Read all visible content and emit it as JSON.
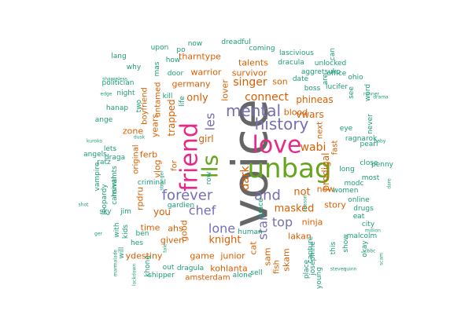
{
  "chart_data": {
    "type": "wordcloud",
    "title": "",
    "colors": {
      "gray": "#666666",
      "green": "#66a61e",
      "magenta": "#e7298a",
      "purple": "#7570b3",
      "orange": "#d95f02",
      "teal": "#1b9e77"
    },
    "words": [
      {
        "text": "voice",
        "weight": 62,
        "color": "gray",
        "rotate": -90
      },
      {
        "text": "unbag",
        "weight": 34,
        "color": "green",
        "rotate": 0
      },
      {
        "text": "friend",
        "weight": 30,
        "color": "magenta",
        "rotate": -90
      },
      {
        "text": "love",
        "weight": 30,
        "color": "magenta",
        "rotate": 0
      },
      {
        "text": "lls",
        "weight": 28,
        "color": "green",
        "rotate": -90
      },
      {
        "text": "history",
        "weight": 20,
        "color": "purple",
        "rotate": 0
      },
      {
        "text": "mental",
        "weight": 20,
        "color": "purple",
        "rotate": 0
      },
      {
        "text": "forever",
        "weight": 18,
        "color": "purple",
        "rotate": 0
      },
      {
        "text": "and",
        "weight": 18,
        "color": "purple",
        "rotate": 0
      },
      {
        "text": "chef",
        "weight": 16,
        "color": "purple",
        "rotate": 0
      },
      {
        "text": "lone",
        "weight": 16,
        "color": "purple",
        "rotate": 0
      },
      {
        "text": "top",
        "weight": 16,
        "color": "purple",
        "rotate": 0
      },
      {
        "text": "les",
        "weight": 16,
        "color": "purple",
        "rotate": -90
      },
      {
        "text": "star",
        "weight": 16,
        "color": "purple",
        "rotate": -90
      },
      {
        "text": "connect",
        "weight": 14,
        "color": "orange",
        "rotate": 0
      },
      {
        "text": "singer",
        "weight": 14,
        "color": "orange",
        "rotate": 0
      },
      {
        "text": "dark",
        "weight": 14,
        "color": "orange",
        "rotate": -90
      },
      {
        "text": "wabi",
        "weight": 14,
        "color": "orange",
        "rotate": 0
      },
      {
        "text": "masked",
        "weight": 13,
        "color": "orange",
        "rotate": 0
      },
      {
        "text": "not",
        "weight": 13,
        "color": "orange",
        "rotate": 0
      },
      {
        "text": "only",
        "weight": 13,
        "color": "orange",
        "rotate": 0
      },
      {
        "text": "knight",
        "weight": 13,
        "color": "orange",
        "rotate": 0
      },
      {
        "text": "vwars",
        "weight": 12,
        "color": "orange",
        "rotate": 0
      },
      {
        "text": "phineas",
        "weight": 12,
        "color": "orange",
        "rotate": 0
      },
      {
        "text": "prodigal",
        "weight": 12,
        "color": "orange",
        "rotate": -90
      },
      {
        "text": "trapped",
        "weight": 12,
        "color": "orange",
        "rotate": -90
      },
      {
        "text": "girl",
        "weight": 12,
        "color": "orange",
        "rotate": 0
      },
      {
        "text": "you",
        "weight": 12,
        "color": "orange",
        "rotate": 0
      },
      {
        "text": "now",
        "weight": 11,
        "color": "orange",
        "rotate": 0
      },
      {
        "text": "story",
        "weight": 11,
        "color": "orange",
        "rotate": 0
      },
      {
        "text": "lakan",
        "weight": 11,
        "color": "orange",
        "rotate": 0
      },
      {
        "text": "blood",
        "weight": 11,
        "color": "orange",
        "rotate": 0
      },
      {
        "text": "warrior",
        "weight": 11,
        "color": "orange",
        "rotate": 0
      },
      {
        "text": "germany",
        "weight": 11,
        "color": "orange",
        "rotate": 0
      },
      {
        "text": "tharntype",
        "weight": 11,
        "color": "orange",
        "rotate": 0
      },
      {
        "text": "talents",
        "weight": 11,
        "color": "orange",
        "rotate": 0
      },
      {
        "text": "son",
        "weight": 11,
        "color": "orange",
        "rotate": 0
      },
      {
        "text": "lover",
        "weight": 11,
        "color": "orange",
        "rotate": -90
      },
      {
        "text": "survivor",
        "weight": 11,
        "color": "orange",
        "rotate": 0
      },
      {
        "text": "years",
        "weight": 11,
        "color": "orange",
        "rotate": -90
      },
      {
        "text": "zone",
        "weight": 11,
        "color": "orange",
        "rotate": 0
      },
      {
        "text": "ferb",
        "weight": 11,
        "color": "orange",
        "rotate": 0
      },
      {
        "text": "vlog",
        "weight": 11,
        "color": "orange",
        "rotate": -90
      },
      {
        "text": "rpdru",
        "weight": 11,
        "color": "orange",
        "rotate": -90
      },
      {
        "text": "time",
        "weight": 11,
        "color": "orange",
        "rotate": 0
      },
      {
        "text": "ahs",
        "weight": 11,
        "color": "orange",
        "rotate": 0
      },
      {
        "text": "given",
        "weight": 11,
        "color": "orange",
        "rotate": 0
      },
      {
        "text": "ydestiny",
        "weight": 11,
        "color": "orange",
        "rotate": 0
      },
      {
        "text": "game",
        "weight": 11,
        "color": "orange",
        "rotate": 0
      },
      {
        "text": "junior",
        "weight": 11,
        "color": "orange",
        "rotate": 0
      },
      {
        "text": "kohlanta",
        "weight": 11,
        "color": "orange",
        "rotate": 0
      },
      {
        "text": "good",
        "weight": 11,
        "color": "orange",
        "rotate": -90
      },
      {
        "text": "ninja",
        "weight": 11,
        "color": "orange",
        "rotate": 0
      },
      {
        "text": "cat",
        "weight": 11,
        "color": "orange",
        "rotate": -90
      },
      {
        "text": "sam",
        "weight": 11,
        "color": "orange",
        "rotate": -90
      },
      {
        "text": "skam",
        "weight": 11,
        "color": "orange",
        "rotate": -90
      },
      {
        "text": "fish",
        "weight": 10,
        "color": "orange",
        "rotate": -90
      },
      {
        "text": "for",
        "weight": 10,
        "color": "orange",
        "rotate": -90
      },
      {
        "text": "untamed",
        "weight": 10,
        "color": "orange",
        "rotate": -90
      },
      {
        "text": "boyfriend",
        "weight": 10,
        "color": "orange",
        "rotate": -90
      },
      {
        "text": "original",
        "weight": 10,
        "color": "orange",
        "rotate": -90
      },
      {
        "text": "next",
        "weight": 10,
        "color": "orange",
        "rotate": -90
      },
      {
        "text": "fast",
        "weight": 10,
        "color": "orange",
        "rotate": -90
      },
      {
        "text": "amsterdam",
        "weight": 10,
        "color": "orange",
        "rotate": 0
      },
      {
        "text": "upon",
        "weight": 9,
        "color": "teal",
        "rotate": 0
      },
      {
        "text": "po",
        "weight": 9,
        "color": "teal",
        "rotate": 0
      },
      {
        "text": "now",
        "weight": 9,
        "color": "teal",
        "rotate": 0
      },
      {
        "text": "dreadful",
        "weight": 9,
        "color": "teal",
        "rotate": 0
      },
      {
        "text": "coming",
        "weight": 9,
        "color": "teal",
        "rotate": 0
      },
      {
        "text": "lascivious",
        "weight": 9,
        "color": "teal",
        "rotate": 0
      },
      {
        "text": "mas",
        "weight": 9,
        "color": "teal",
        "rotate": -90
      },
      {
        "text": "how",
        "weight": 9,
        "color": "teal",
        "rotate": 0
      },
      {
        "text": "dracula",
        "weight": 9,
        "color": "teal",
        "rotate": 0
      },
      {
        "text": "unlocked",
        "weight": 9,
        "color": "teal",
        "rotate": 0
      },
      {
        "text": "why",
        "weight": 9,
        "color": "teal",
        "rotate": 0
      },
      {
        "text": "door",
        "weight": 9,
        "color": "teal",
        "rotate": 0
      },
      {
        "text": "aggretsuko",
        "weight": 9,
        "color": "teal",
        "rotate": 0
      },
      {
        "text": "office",
        "weight": 9,
        "color": "teal",
        "rotate": 0
      },
      {
        "text": "politician",
        "weight": 9,
        "color": "teal",
        "rotate": 0
      },
      {
        "text": "date",
        "weight": 9,
        "color": "teal",
        "rotate": 0
      },
      {
        "text": "night",
        "weight": 9,
        "color": "teal",
        "rotate": 0
      },
      {
        "text": "kill",
        "weight": 9,
        "color": "teal",
        "rotate": 0
      },
      {
        "text": "boss",
        "weight": 9,
        "color": "teal",
        "rotate": 0
      },
      {
        "text": "lucifer",
        "weight": 9,
        "color": "teal",
        "rotate": 0
      },
      {
        "text": "see",
        "weight": 9,
        "color": "teal",
        "rotate": -90
      },
      {
        "text": "life",
        "weight": 9,
        "color": "teal",
        "rotate": -90
      },
      {
        "text": "word",
        "weight": 9,
        "color": "teal",
        "rotate": -90
      },
      {
        "text": "two",
        "weight": 9,
        "color": "teal",
        "rotate": -90
      },
      {
        "text": "hanap",
        "weight": 9,
        "color": "teal",
        "rotate": 0
      },
      {
        "text": "ange",
        "weight": 9,
        "color": "teal",
        "rotate": 0
      },
      {
        "text": "never",
        "weight": 9,
        "color": "teal",
        "rotate": -90
      },
      {
        "text": "eye",
        "weight": 9,
        "color": "teal",
        "rotate": 0
      },
      {
        "text": "ragnarok",
        "weight": 9,
        "color": "teal",
        "rotate": 0
      },
      {
        "text": "pearl",
        "weight": 9,
        "color": "teal",
        "rotate": 0
      },
      {
        "text": "close",
        "weight": 9,
        "color": "teal",
        "rotate": 0
      },
      {
        "text": "long",
        "weight": 9,
        "color": "teal",
        "rotate": 0
      },
      {
        "text": "modc",
        "weight": 9,
        "color": "teal",
        "rotate": 0
      },
      {
        "text": "women",
        "weight": 9,
        "color": "teal",
        "rotate": 0
      },
      {
        "text": "online",
        "weight": 9,
        "color": "teal",
        "rotate": 0
      },
      {
        "text": "drugs",
        "weight": 9,
        "color": "teal",
        "rotate": 0
      },
      {
        "text": "eat",
        "weight": 9,
        "color": "teal",
        "rotate": 0
      },
      {
        "text": "city",
        "weight": 9,
        "color": "teal",
        "rotate": 0
      },
      {
        "text": "most",
        "weight": 9,
        "color": "teal",
        "rotate": 0
      },
      {
        "text": "penny",
        "weight": 9,
        "color": "teal",
        "rotate": 0
      },
      {
        "text": "malcolm",
        "weight": 9,
        "color": "teal",
        "rotate": 0
      },
      {
        "text": "show",
        "weight": 9,
        "color": "teal",
        "rotate": -90
      },
      {
        "text": "this",
        "weight": 9,
        "color": "teal",
        "rotate": -90
      },
      {
        "text": "okay",
        "weight": 9,
        "color": "teal",
        "rotate": -90
      },
      {
        "text": "capture",
        "weight": 9,
        "color": "teal",
        "rotate": -90
      },
      {
        "text": "josephine",
        "weight": 9,
        "color": "teal",
        "rotate": -90
      },
      {
        "text": "place",
        "weight": 9,
        "color": "teal",
        "rotate": -90
      },
      {
        "text": "young",
        "weight": 9,
        "color": "teal",
        "rotate": -90
      },
      {
        "text": "angels",
        "weight": 9,
        "color": "teal",
        "rotate": 0
      },
      {
        "text": "draga",
        "weight": 9,
        "color": "teal",
        "rotate": 0
      },
      {
        "text": "lets",
        "weight": 9,
        "color": "teal",
        "rotate": 0
      },
      {
        "text": "ratz",
        "weight": 9,
        "color": "teal",
        "rotate": 0
      },
      {
        "text": "vampire",
        "weight": 9,
        "color": "teal",
        "rotate": -90
      },
      {
        "text": "hsmtmts",
        "weight": 9,
        "color": "teal",
        "rotate": -90
      },
      {
        "text": "carnival",
        "weight": 9,
        "color": "teal",
        "rotate": -90
      },
      {
        "text": "jeopardy",
        "weight": 9,
        "color": "teal",
        "rotate": -90
      },
      {
        "text": "sky",
        "weight": 9,
        "color": "teal",
        "rotate": 0
      },
      {
        "text": "jim",
        "weight": 9,
        "color": "teal",
        "rotate": 0
      },
      {
        "text": "criminal",
        "weight": 9,
        "color": "teal",
        "rotate": 0
      },
      {
        "text": "gardien",
        "weight": 9,
        "color": "teal",
        "rotate": 0
      },
      {
        "text": "row",
        "weight": 9,
        "color": "teal",
        "rotate": -90
      },
      {
        "text": "grace",
        "weight": 9,
        "color": "teal",
        "rotate": -90
      },
      {
        "text": "with",
        "weight": 9,
        "color": "teal",
        "rotate": -90
      },
      {
        "text": "kids",
        "weight": 9,
        "color": "teal",
        "rotate": -90
      },
      {
        "text": "ben",
        "weight": 9,
        "color": "teal",
        "rotate": 0
      },
      {
        "text": "hes",
        "weight": 9,
        "color": "teal",
        "rotate": 0
      },
      {
        "text": "will",
        "weight": 9,
        "color": "teal",
        "rotate": -90
      },
      {
        "text": "khong",
        "weight": 9,
        "color": "teal",
        "rotate": -90
      },
      {
        "text": "out",
        "weight": 9,
        "color": "teal",
        "rotate": 0
      },
      {
        "text": "dragula",
        "weight": 9,
        "color": "teal",
        "rotate": 0
      },
      {
        "text": "shipper",
        "weight": 9,
        "color": "teal",
        "rotate": 0
      },
      {
        "text": "human",
        "weight": 9,
        "color": "teal",
        "rotate": 0
      },
      {
        "text": "sell",
        "weight": 9,
        "color": "teal",
        "rotate": 0
      },
      {
        "text": "alone",
        "weight": 9,
        "color": "teal",
        "rotate": 0
      },
      {
        "text": "lang",
        "weight": 9,
        "color": "teal",
        "rotate": 0
      },
      {
        "text": "can",
        "weight": 9,
        "color": "teal",
        "rotate": -90
      },
      {
        "text": "are",
        "weight": 9,
        "color": "teal",
        "rotate": -90
      },
      {
        "text": "ohio",
        "weight": 9,
        "color": "teal",
        "rotate": 0
      },
      {
        "text": "shameless",
        "weight": 6,
        "color": "teal",
        "rotate": 0
      },
      {
        "text": "edge",
        "weight": 6,
        "color": "teal",
        "rotate": 0
      },
      {
        "text": "runner",
        "weight": 6,
        "color": "teal",
        "rotate": 0
      },
      {
        "text": "drama",
        "weight": 6,
        "color": "teal",
        "rotate": 0
      },
      {
        "text": "kuroko",
        "weight": 6,
        "color": "teal",
        "rotate": 0
      },
      {
        "text": "baby",
        "weight": 6,
        "color": "teal",
        "rotate": 0
      },
      {
        "text": "dusk",
        "weight": 6,
        "color": "teal",
        "rotate": 0
      },
      {
        "text": "stranger",
        "weight": 6,
        "color": "teal",
        "rotate": -90
      },
      {
        "text": "season",
        "weight": 6,
        "color": "teal",
        "rotate": -90
      },
      {
        "text": "dare",
        "weight": 6,
        "color": "teal",
        "rotate": -90
      },
      {
        "text": "shot",
        "weight": 6,
        "color": "teal",
        "rotate": 0
      },
      {
        "text": "ger",
        "weight": 6,
        "color": "teal",
        "rotate": 0
      },
      {
        "text": "tale",
        "weight": 6,
        "color": "teal",
        "rotate": -90
      },
      {
        "text": "marmalade",
        "weight": 6,
        "color": "teal",
        "rotate": -90
      },
      {
        "text": "lockdown",
        "weight": 6,
        "color": "teal",
        "rotate": -90
      },
      {
        "text": "million",
        "weight": 6,
        "color": "teal",
        "rotate": 0
      },
      {
        "text": "bbc",
        "weight": 6,
        "color": "teal",
        "rotate": 0
      },
      {
        "text": "quinn",
        "weight": 6,
        "color": "teal",
        "rotate": 0
      },
      {
        "text": "steven",
        "weight": 6,
        "color": "teal",
        "rotate": 0
      },
      {
        "text": "scam",
        "weight": 6,
        "color": "teal",
        "rotate": -90
      },
      {
        "text": "zenozeronne",
        "weight": 6,
        "color": "teal",
        "rotate": -90
      },
      {
        "text": "crime",
        "weight": 6,
        "color": "teal",
        "rotate": -90
      },
      {
        "text": "mine",
        "weight": 6,
        "color": "teal",
        "rotate": -90
      },
      {
        "text": "guerra",
        "weight": 6,
        "color": "teal",
        "rotate": -90
      }
    ]
  }
}
